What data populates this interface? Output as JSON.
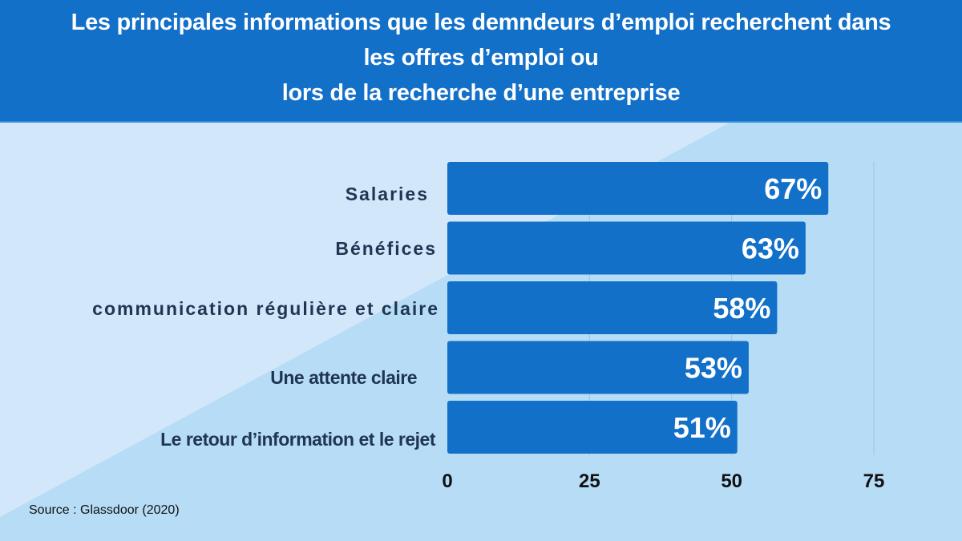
{
  "title": [
    "Les principales informations que les demndeurs d’emploi recherchent dans",
    "les offres d’emploi ou",
    "lors de la recherche d’une entreprise"
  ],
  "source": "Source : Glassdoor (2020)",
  "colors": {
    "header": "#1270c9",
    "bar": "#1270c9",
    "background_light": "#d2e7fa",
    "background": "#b6dcf6",
    "label": "#1f3552"
  },
  "chart_data": {
    "type": "bar",
    "orientation": "horizontal",
    "categories": [
      "Salaries",
      "Bénéfices",
      "communication régulière et claire",
      "Une attente claire",
      "Le retour d’information et le rejet"
    ],
    "values": [
      67,
      63,
      58,
      53,
      51
    ],
    "data_labels": [
      "67%",
      "63%",
      "58%",
      "53%",
      "51%"
    ],
    "xlim": [
      0,
      75
    ],
    "xticks": [
      "0",
      "25",
      "50",
      "75"
    ],
    "grid": "vertical"
  }
}
